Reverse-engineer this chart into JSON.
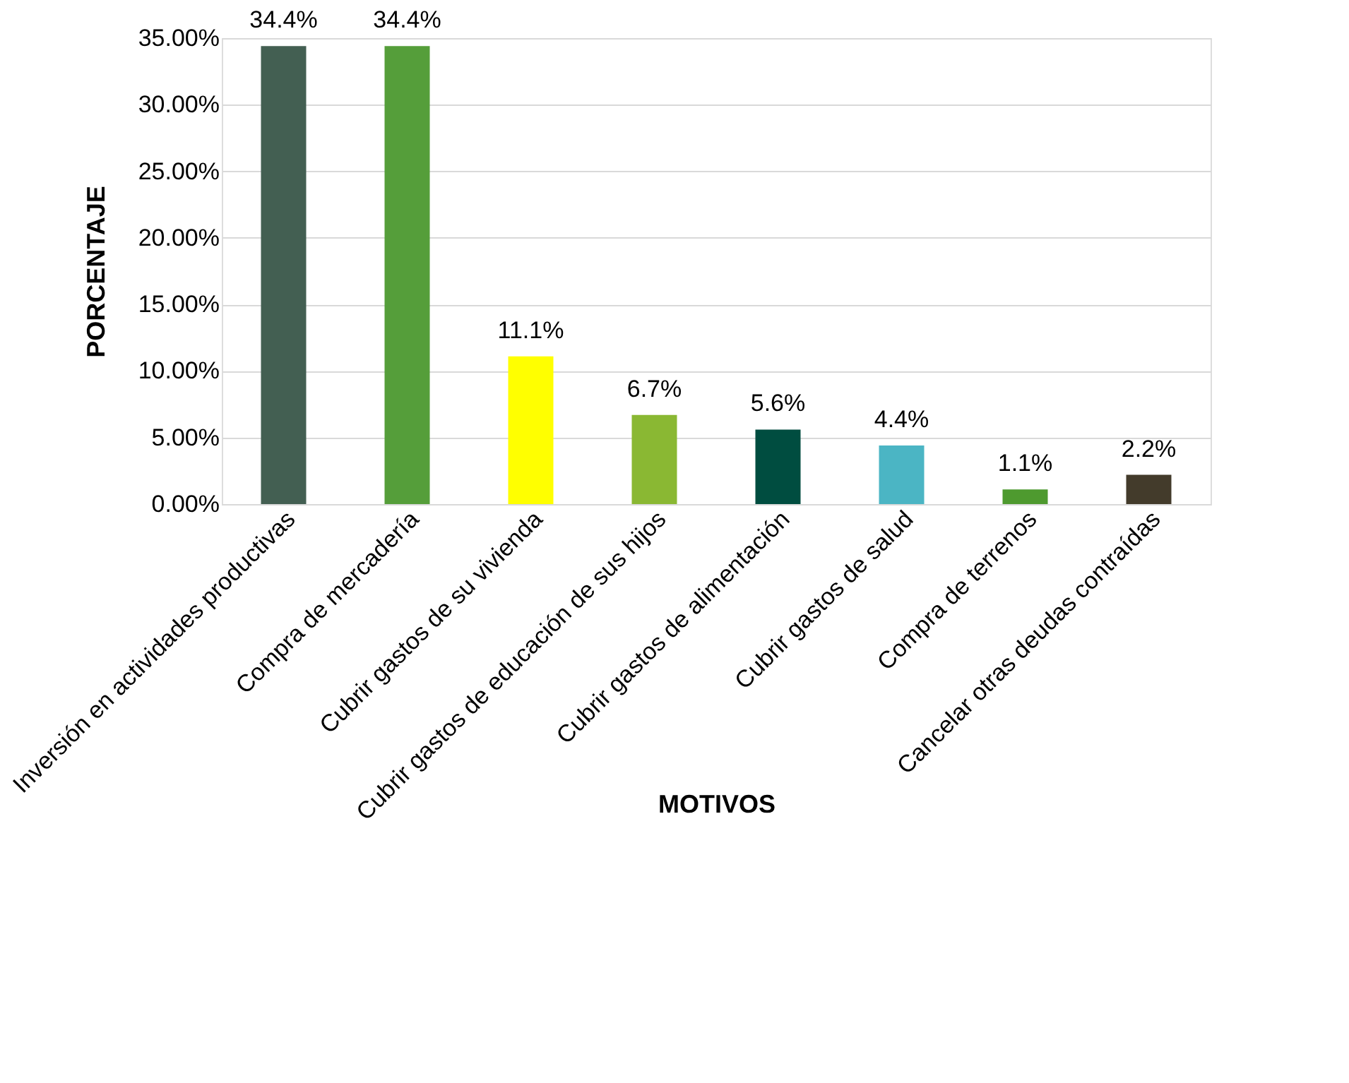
{
  "chart_data": {
    "type": "bar",
    "xlabel": "MOTIVOS",
    "ylabel": "PORCENTAJE",
    "categories": [
      "Inversión en actividades productivas",
      "Compra de mercadería",
      "Cubrir gastos de su vivienda",
      "Cubrir gastos de educación de sus hijos",
      "Cubrir gastos de alimentación",
      "Cubrir gastos de salud",
      "Compra de terrenos",
      "Cancelar otras deudas contraídas"
    ],
    "values": [
      34.4,
      34.4,
      11.1,
      6.7,
      5.6,
      4.4,
      1.1,
      2.2
    ],
    "value_labels": [
      "34.4%",
      "34.4%",
      "11.1%",
      "6.7%",
      "5.6%",
      "4.4%",
      "1.1%",
      "2.2%"
    ],
    "colors": [
      "#435f52",
      "#559e3a",
      "#ffff00",
      "#8ab833",
      "#004d40",
      "#4bb5c4",
      "#4e9a2f",
      "#433b2b"
    ],
    "ylim": [
      0,
      35
    ],
    "yticks": [
      {
        "value": 0,
        "label": "0.00%"
      },
      {
        "value": 5,
        "label": "5.00%"
      },
      {
        "value": 10,
        "label": "10.00%"
      },
      {
        "value": 15,
        "label": "15.00%"
      },
      {
        "value": 20,
        "label": "20.00%"
      },
      {
        "value": 25,
        "label": "25.00%"
      },
      {
        "value": 30,
        "label": "30.00%"
      },
      {
        "value": 35,
        "label": "35.00%"
      }
    ],
    "grid": "y",
    "legend": false
  }
}
